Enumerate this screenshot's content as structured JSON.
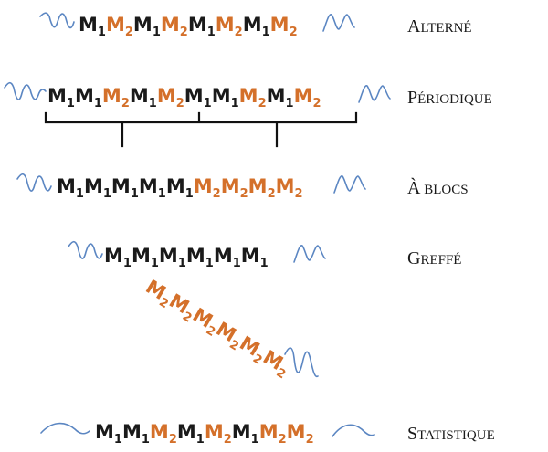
{
  "colors": {
    "m1": "#1a1a1a",
    "m2": "#d4702a",
    "wave": "#5b86c2",
    "label": "#1a1a1a"
  },
  "rows": [
    {
      "id": "alterne",
      "label": {
        "first": "A",
        "rest": "LTERNÉ"
      },
      "chain": [
        "M1",
        "M2",
        "M1",
        "M2",
        "M1",
        "M2",
        "M1",
        "M2"
      ]
    },
    {
      "id": "periodique",
      "label": {
        "first": "P",
        "rest": "ÉRIODIQUE"
      },
      "chain": [
        "M1",
        "M1",
        "M2",
        "M1",
        "M2",
        "M1",
        "M1",
        "M2",
        "M1",
        "M2"
      ]
    },
    {
      "id": "blocs",
      "label": {
        "first": "À",
        "rest": " BLOCS"
      },
      "chain": [
        "M1",
        "M1",
        "M1",
        "M1",
        "M1",
        "M2",
        "M2",
        "M2",
        "M2"
      ]
    },
    {
      "id": "greffe",
      "label": {
        "first": "G",
        "rest": "REFFÉ"
      },
      "chain": [
        "M1",
        "M1",
        "M1",
        "M1",
        "M1",
        "M1"
      ],
      "branch": [
        "M2",
        "M2",
        "M2",
        "M2",
        "M2",
        "M2"
      ]
    },
    {
      "id": "statistique",
      "label": {
        "first": "S",
        "rest": "TATISTIQUE"
      },
      "chain": [
        "M1",
        "M1",
        "M2",
        "M1",
        "M2",
        "M1",
        "M2",
        "M2"
      ]
    }
  ]
}
